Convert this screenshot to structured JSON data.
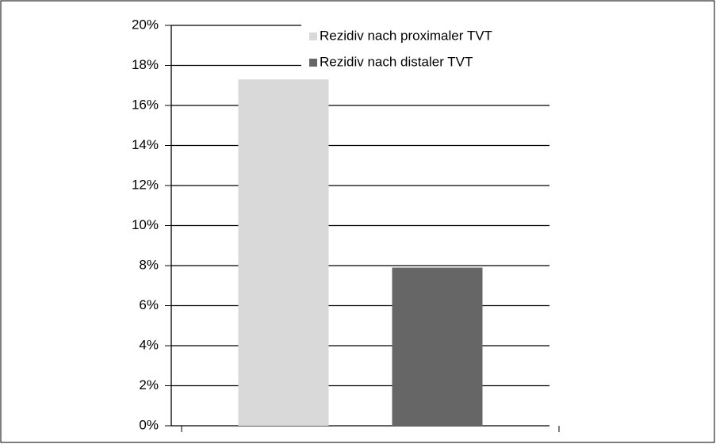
{
  "chart_data": {
    "type": "bar",
    "categories": [
      null
    ],
    "series": [
      {
        "name": "Rezidiv nach proximaler TVT",
        "color": "#d9d9d9",
        "values": [
          17.3
        ]
      },
      {
        "name": "Rezidiv nach distaler TVT",
        "color": "#666666",
        "values": [
          7.9
        ]
      }
    ],
    "ylim": [
      0,
      20
    ],
    "yticks": [
      {
        "value": 0,
        "label": "0%"
      },
      {
        "value": 2,
        "label": "2%"
      },
      {
        "value": 4,
        "label": "4%"
      },
      {
        "value": 6,
        "label": "6%"
      },
      {
        "value": 8,
        "label": "8%"
      },
      {
        "value": 10,
        "label": "10%"
      },
      {
        "value": 12,
        "label": "12%"
      },
      {
        "value": 14,
        "label": "14%"
      },
      {
        "value": 16,
        "label": "16%"
      },
      {
        "value": 18,
        "label": "18%"
      },
      {
        "value": 20,
        "label": "20%"
      }
    ],
    "grid": true,
    "legend": "top-right"
  }
}
